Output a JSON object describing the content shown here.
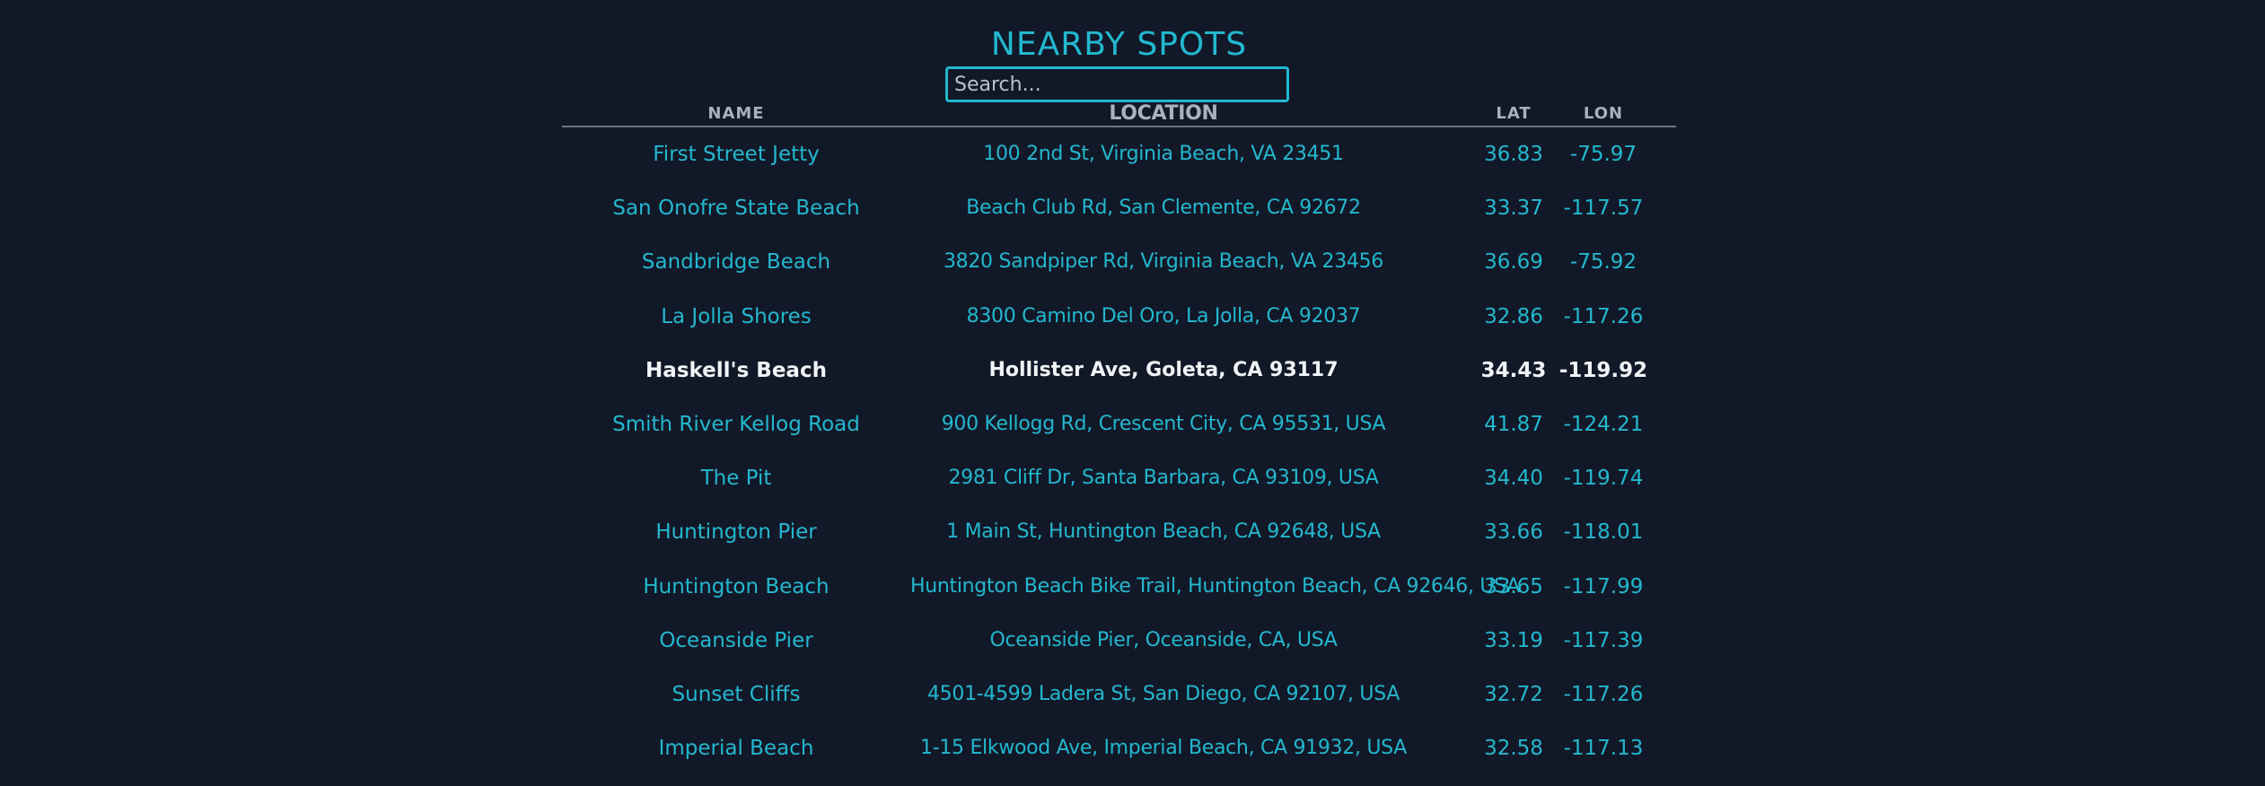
{
  "page": {
    "title": "NEARBY SPOTS"
  },
  "search": {
    "placeholder": "Search...",
    "value": ""
  },
  "table": {
    "columns": {
      "name": "NAME",
      "location": "LOCATION",
      "lat": "LAT",
      "lon": "LON"
    },
    "selected_index": 4,
    "rows": [
      {
        "name": "First Street Jetty",
        "location": "100 2nd St, Virginia Beach, VA 23451",
        "lat": "36.83",
        "lon": "-75.97"
      },
      {
        "name": "San Onofre State Beach",
        "location": "Beach Club Rd, San Clemente, CA 92672",
        "lat": "33.37",
        "lon": "-117.57"
      },
      {
        "name": "Sandbridge Beach",
        "location": "3820 Sandpiper Rd, Virginia Beach, VA 23456",
        "lat": "36.69",
        "lon": "-75.92"
      },
      {
        "name": "La Jolla Shores",
        "location": "8300 Camino Del Oro, La Jolla, CA 92037",
        "lat": "32.86",
        "lon": "-117.26"
      },
      {
        "name": "Haskell's Beach",
        "location": "Hollister Ave, Goleta, CA 93117",
        "lat": "34.43",
        "lon": "-119.92"
      },
      {
        "name": "Smith River Kellog Road",
        "location": "900 Kellogg Rd, Crescent City, CA 95531, USA",
        "lat": "41.87",
        "lon": "-124.21"
      },
      {
        "name": "The Pit",
        "location": "2981 Cliff Dr, Santa Barbara, CA 93109, USA",
        "lat": "34.40",
        "lon": "-119.74"
      },
      {
        "name": "Huntington Pier",
        "location": "1 Main St, Huntington Beach, CA 92648, USA",
        "lat": "33.66",
        "lon": "-118.01"
      },
      {
        "name": "Huntington Beach",
        "location": "Huntington Beach Bike Trail, Huntington Beach, CA 92646, USA",
        "lat": "33.65",
        "lon": "-117.99"
      },
      {
        "name": "Oceanside Pier",
        "location": "Oceanside Pier, Oceanside, CA, USA",
        "lat": "33.19",
        "lon": "-117.39"
      },
      {
        "name": "Sunset Cliffs",
        "location": "4501-4599 Ladera St, San Diego, CA 92107, USA",
        "lat": "32.72",
        "lon": "-117.26"
      },
      {
        "name": "Imperial Beach",
        "location": "1-15 Elkwood Ave, Imperial Beach, CA 91932, USA",
        "lat": "32.58",
        "lon": "-117.13"
      }
    ]
  },
  "colors": {
    "background": "#111827",
    "accent": "#22b8cf",
    "selected_text": "#f1f5f9",
    "header_text": "#a9b1bb"
  }
}
